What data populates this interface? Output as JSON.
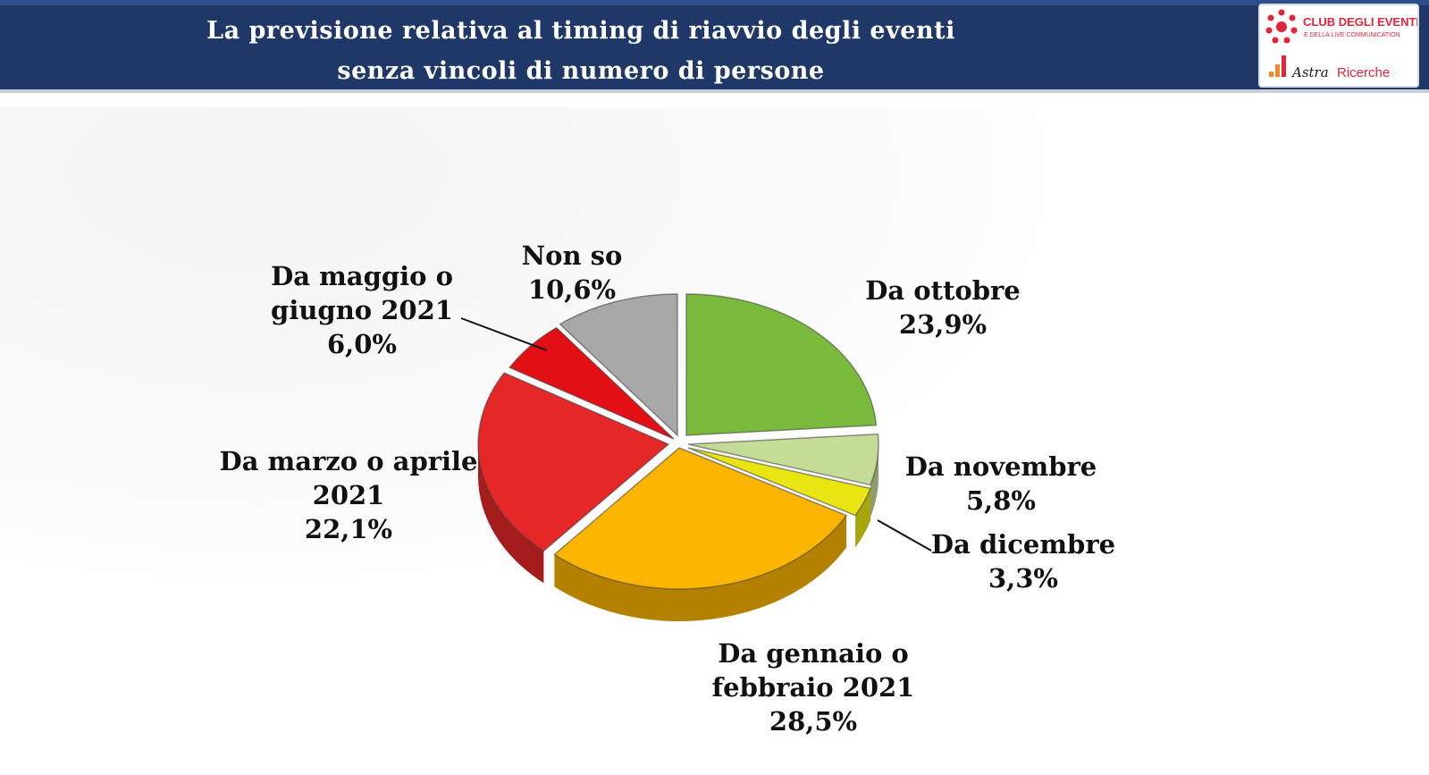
{
  "header": {
    "title_line1": "La previsione relativa al timing di riavvio degli eventi",
    "title_line2": "senza vincoli di numero di persone",
    "logo_top_text": "CLUB DEGLI EVENTI",
    "logo_sub_text": "E DELLA LIVE COMMUNICATION",
    "logo_bottom_text_a": "Astra",
    "logo_bottom_text_b": "Ricerche"
  },
  "colors": {
    "header_bg": "#1f3867",
    "logo_red": "#e3253b",
    "logo_orange": "#f08a24"
  },
  "chart_data": {
    "type": "pie",
    "title": "",
    "unit": "%",
    "categories": [
      "Da ottobre",
      "Da novembre",
      "Da dicembre",
      "Da gennaio o febbraio 2021",
      "Da marzo o aprile 2021",
      "Da maggio o giugno 2021",
      "Non so"
    ],
    "values": [
      23.9,
      5.8,
      3.3,
      28.5,
      22.1,
      6.0,
      10.6
    ],
    "colors": [
      "#7aba3c",
      "#c4dc96",
      "#e8e513",
      "#fbb500",
      "#e52727",
      "#e20f14",
      "#a8a8a8"
    ],
    "labels": [
      {
        "l1": "Da ottobre",
        "l2": "",
        "val": "23,9%"
      },
      {
        "l1": "Da novembre",
        "l2": "",
        "val": "5,8%"
      },
      {
        "l1": "Da dicembre",
        "l2": "",
        "val": "3,3%"
      },
      {
        "l1": "Da gennaio o",
        "l2": "febbraio 2021",
        "val": "28,5%"
      },
      {
        "l1": "Da marzo o aprile",
        "l2": "2021",
        "val": "22,1%"
      },
      {
        "l1": "Da maggio o",
        "l2": "giugno 2021",
        "val": "6,0%"
      },
      {
        "l1": "Non so",
        "l2": "",
        "val": "10,6%"
      }
    ],
    "legend": "none",
    "grid": false
  }
}
